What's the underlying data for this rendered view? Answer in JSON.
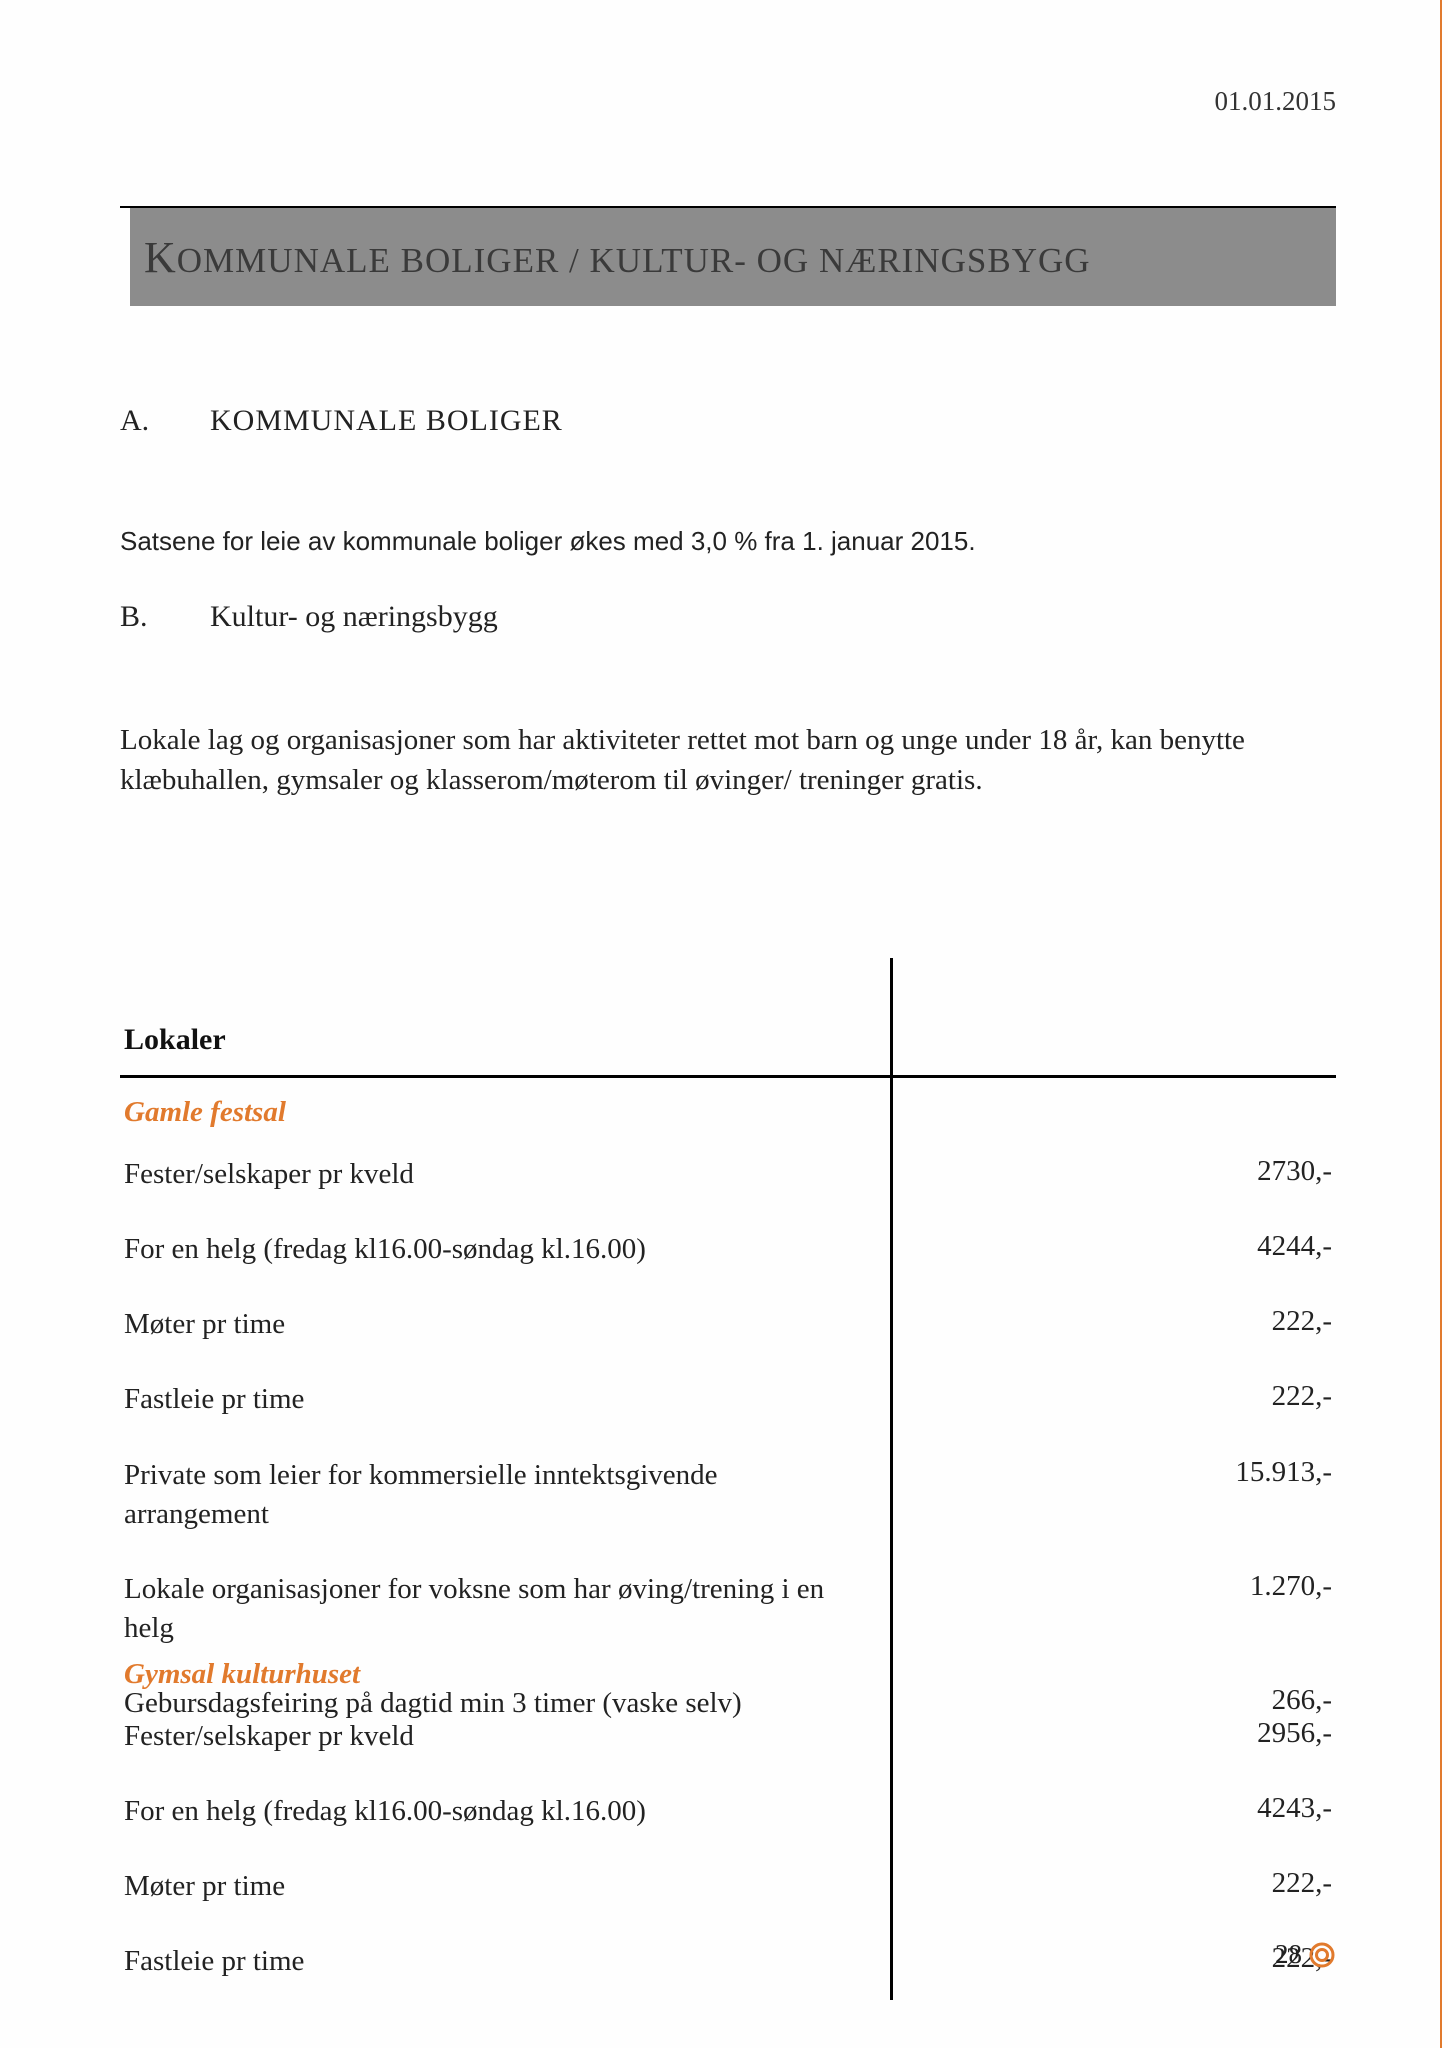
{
  "meta": {
    "date": "01.01.2015",
    "page_number": "28",
    "accent_color": "#e17a2d",
    "titlebar_bg": "#8c8c8c"
  },
  "title": {
    "first_word_initial": "K",
    "rest": "OMMUNALE BOLIGER / KULTUR- OG NÆRINGSBYGG"
  },
  "sectionA": {
    "label": "A.",
    "heading": "KOMMUNALE BOLIGER",
    "intro": "Satsene for leie av kommunale boliger økes med 3,0 % fra 1. januar 2015."
  },
  "sectionB": {
    "label": "B.",
    "heading": "Kultur- og næringsbygg",
    "intro": "Lokale lag og organisasjoner som har aktiviteter rettet mot barn og unge under 18 år, kan benytte klæbuhallen, gymsaler og klasserom/møterom til øvinger/ treninger gratis."
  },
  "table1": {
    "header": "Lokaler",
    "section": "Gamle festsal",
    "rows": [
      {
        "label": "Fester/selskaper pr kveld",
        "value": "2730,-"
      },
      {
        "label": "For en helg (fredag kl16.00-søndag kl.16.00)",
        "value": "4244,-"
      },
      {
        "label": "Møter pr time",
        "value": "222,-"
      },
      {
        "label": "Fastleie pr time",
        "value": "222,-"
      },
      {
        "label": "Private som leier for kommersielle inntektsgivende arrangement",
        "value": "15.913,-"
      },
      {
        "label": "Lokale organisasjoner for voksne som har øving/trening i en helg",
        "value": "1.270,-"
      },
      {
        "label": "Gebursdagsfeiring på dagtid min 3 timer (vaske selv)",
        "value": "266,-"
      }
    ]
  },
  "table2": {
    "section": "Gymsal kulturhuset",
    "rows": [
      {
        "label": "Fester/selskaper pr kveld",
        "value": "2956,-"
      },
      {
        "label": "For en helg (fredag kl16.00-søndag kl.16.00)",
        "value": "4243,-"
      },
      {
        "label": "Møter pr time",
        "value": "222,-"
      },
      {
        "label": "Fastleie pr time",
        "value": "222,-"
      }
    ]
  }
}
